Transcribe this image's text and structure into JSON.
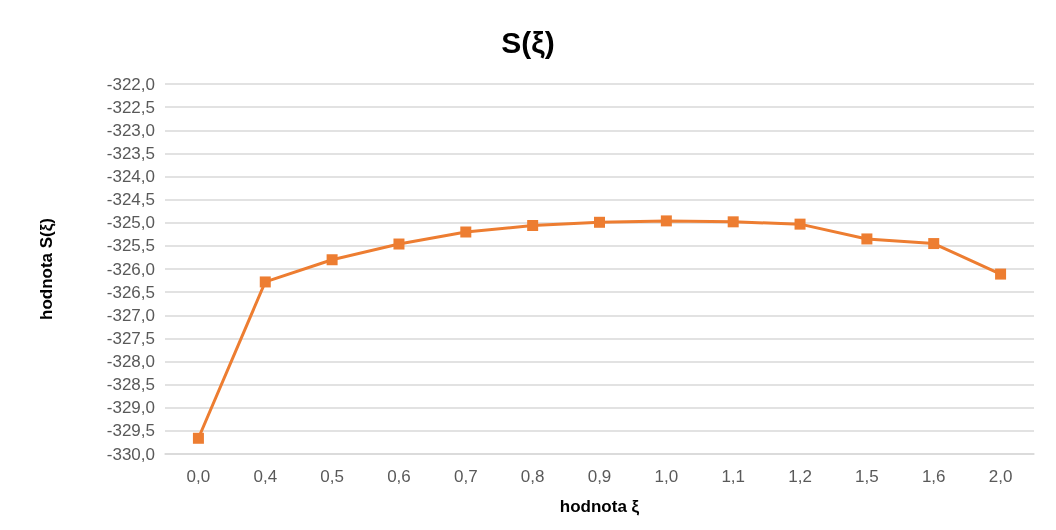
{
  "chart_data": {
    "type": "line",
    "title": "S(ξ)",
    "xlabel": "hodnota ξ",
    "ylabel": "hodnota S(ξ)",
    "categories": [
      "0,0",
      "0,4",
      "0,5",
      "0,6",
      "0,7",
      "0,8",
      "0,9",
      "1,0",
      "1,1",
      "1,2",
      "1,5",
      "1,6",
      "2,0"
    ],
    "series": [
      {
        "color": "#ed7d31",
        "values": [
          -329.66,
          -326.28,
          -325.8,
          -325.46,
          -325.2,
          -325.06,
          -324.99,
          -324.96,
          -324.98,
          -325.03,
          -325.35,
          -325.45,
          -326.11
        ]
      }
    ],
    "ylim": [
      -330,
      -322
    ],
    "yticks": [
      {
        "value": -330,
        "label": "-330,0"
      },
      {
        "value": -329.5,
        "label": "-329,5"
      },
      {
        "value": -329,
        "label": "-329,0"
      },
      {
        "value": -328.5,
        "label": "-328,5"
      },
      {
        "value": -328,
        "label": "-328,0"
      },
      {
        "value": -327.5,
        "label": "-327,5"
      },
      {
        "value": -327,
        "label": "-327,0"
      },
      {
        "value": -326.5,
        "label": "-326,5"
      },
      {
        "value": -326,
        "label": "-326,0"
      },
      {
        "value": -325.5,
        "label": "-325,5"
      },
      {
        "value": -325,
        "label": "-325,0"
      },
      {
        "value": -324.5,
        "label": "-324,5"
      },
      {
        "value": -324,
        "label": "-324,0"
      },
      {
        "value": -323.5,
        "label": "-323,5"
      },
      {
        "value": -323,
        "label": "-323,0"
      },
      {
        "value": -322.5,
        "label": "-322,5"
      },
      {
        "value": -322,
        "label": "-322,0"
      }
    ],
    "grid": "y",
    "marker": "square",
    "line_style": "solid"
  }
}
